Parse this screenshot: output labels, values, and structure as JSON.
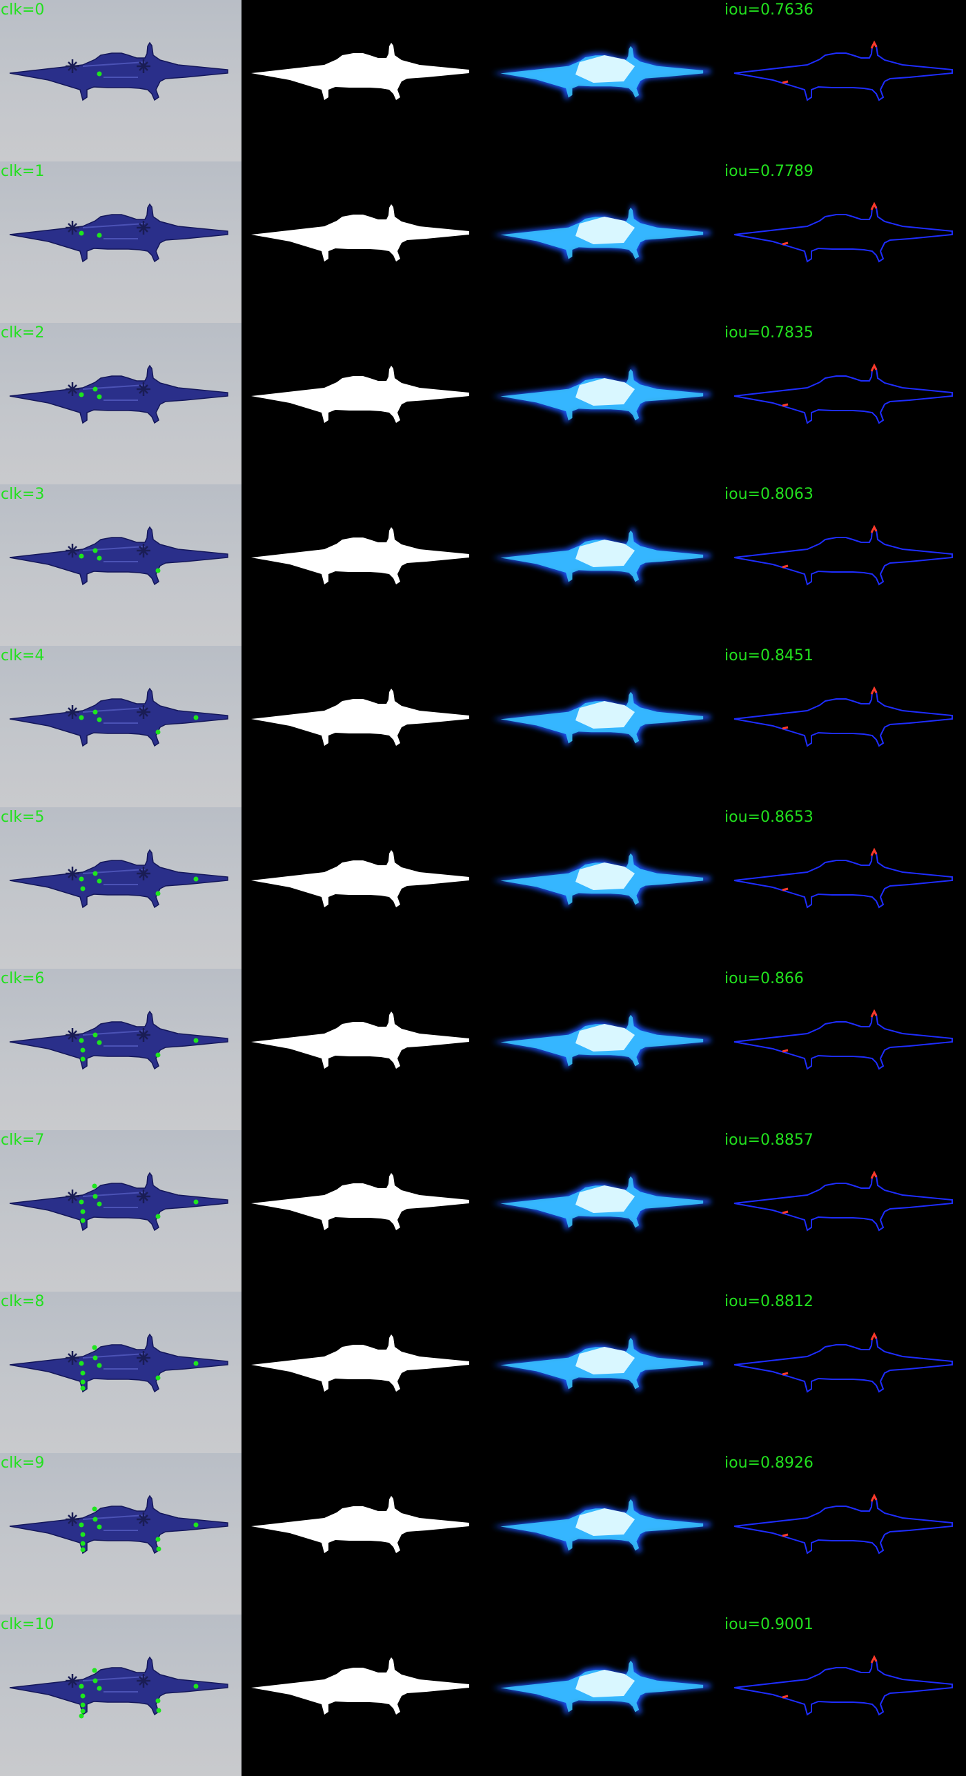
{
  "label_color": "#22e01e",
  "click_color": "#1ee61e",
  "rows": [
    {
      "clk": "clk=0",
      "iou": "iou=0.7636",
      "clicks": 1
    },
    {
      "clk": "clk=1",
      "iou": "iou=0.7789",
      "clicks": 2
    },
    {
      "clk": "clk=2",
      "iou": "iou=0.7835",
      "clicks": 3
    },
    {
      "clk": "clk=3",
      "iou": "iou=0.8063",
      "clicks": 4
    },
    {
      "clk": "clk=4",
      "iou": "iou=0.8451",
      "clicks": 5
    },
    {
      "clk": "clk=5",
      "iou": "iou=0.8653",
      "clicks": 6
    },
    {
      "clk": "clk=6",
      "iou": "iou=0.866",
      "clicks": 7
    },
    {
      "clk": "clk=7",
      "iou": "iou=0.8857",
      "clicks": 8
    },
    {
      "clk": "clk=8",
      "iou": "iou=0.8812",
      "clicks": 9
    },
    {
      "clk": "clk=9",
      "iou": "iou=0.8926",
      "clicks": 10
    },
    {
      "clk": "clk=10",
      "iou": "iou=0.9001",
      "clicks": 11
    }
  ]
}
